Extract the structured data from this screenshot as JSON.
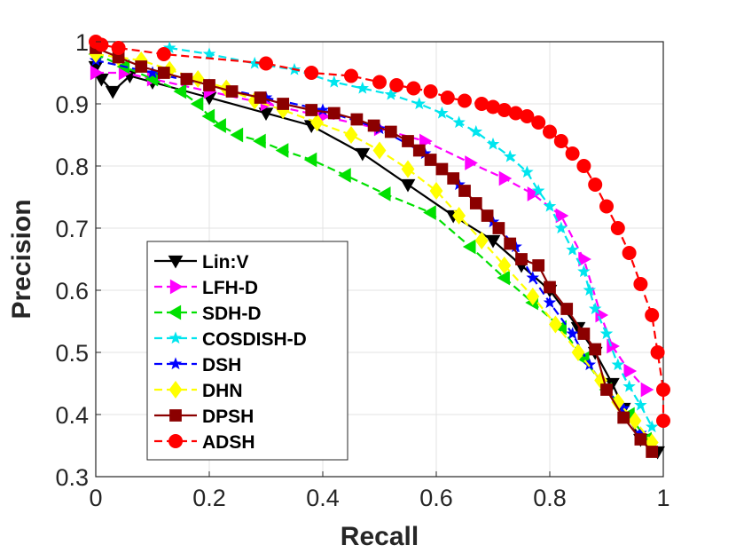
{
  "chart_data": {
    "type": "line",
    "title": "",
    "xlabel": "Recall",
    "ylabel": "Precision",
    "xlim": [
      0,
      1
    ],
    "ylim": [
      0.3,
      1
    ],
    "xticks": [
      "0",
      "0.2",
      "0.4",
      "0.6",
      "0.8",
      "1"
    ],
    "yticks": [
      "0.3",
      "0.4",
      "0.5",
      "0.6",
      "0.7",
      "0.8",
      "0.9",
      "1"
    ],
    "grid": true,
    "legend_position": "bottom-left",
    "series": [
      {
        "name": "Lin:V",
        "color": "#000000",
        "marker": "triangle-down",
        "line": "solid",
        "x": [
          0.0,
          0.01,
          0.03,
          0.06,
          0.1,
          0.2,
          0.3,
          0.38,
          0.47,
          0.55,
          0.63,
          0.7,
          0.75,
          0.8,
          0.85,
          0.88,
          0.91,
          0.93,
          0.96,
          0.99
        ],
        "y": [
          0.96,
          0.94,
          0.92,
          0.945,
          0.935,
          0.91,
          0.885,
          0.865,
          0.82,
          0.77,
          0.72,
          0.68,
          0.64,
          0.6,
          0.54,
          0.5,
          0.45,
          0.41,
          0.36,
          0.34
        ]
      },
      {
        "name": "LFH-D",
        "color": "#ff00ff",
        "marker": "triangle-right",
        "line": "dashed",
        "x": [
          0.0,
          0.05,
          0.1,
          0.2,
          0.3,
          0.4,
          0.5,
          0.58,
          0.66,
          0.72,
          0.77,
          0.82,
          0.86,
          0.89,
          0.91,
          0.94,
          0.97
        ],
        "y": [
          0.95,
          0.95,
          0.94,
          0.92,
          0.9,
          0.88,
          0.86,
          0.84,
          0.805,
          0.78,
          0.755,
          0.72,
          0.65,
          0.56,
          0.51,
          0.47,
          0.44
        ]
      },
      {
        "name": "SDH-D",
        "color": "#00e000",
        "marker": "triangle-left",
        "line": "dashed",
        "x": [
          0.0,
          0.05,
          0.1,
          0.15,
          0.18,
          0.2,
          0.22,
          0.25,
          0.29,
          0.33,
          0.38,
          0.44,
          0.51,
          0.59,
          0.66,
          0.72,
          0.77,
          0.82,
          0.86,
          0.9,
          0.94,
          0.97
        ],
        "y": [
          0.98,
          0.96,
          0.94,
          0.92,
          0.9,
          0.88,
          0.865,
          0.85,
          0.84,
          0.825,
          0.81,
          0.785,
          0.755,
          0.725,
          0.67,
          0.62,
          0.58,
          0.54,
          0.49,
          0.44,
          0.4,
          0.36
        ]
      },
      {
        "name": "COSDISH-D",
        "color": "#00e5ee",
        "marker": "star",
        "line": "dashed",
        "x": [
          0.13,
          0.2,
          0.28,
          0.35,
          0.42,
          0.47,
          0.52,
          0.57,
          0.61,
          0.64,
          0.67,
          0.7,
          0.73,
          0.76,
          0.78,
          0.8,
          0.82,
          0.84,
          0.86,
          0.87,
          0.88,
          0.9,
          0.92,
          0.94,
          0.96,
          0.98
        ],
        "y": [
          0.99,
          0.98,
          0.965,
          0.955,
          0.935,
          0.925,
          0.915,
          0.9,
          0.885,
          0.87,
          0.855,
          0.835,
          0.815,
          0.79,
          0.76,
          0.735,
          0.7,
          0.665,
          0.63,
          0.6,
          0.57,
          0.53,
          0.48,
          0.445,
          0.415,
          0.38
        ]
      },
      {
        "name": "DSH",
        "color": "#0000ff",
        "marker": "star",
        "line": "dashed",
        "x": [
          0.0,
          0.1,
          0.2,
          0.3,
          0.4,
          0.5,
          0.58,
          0.64,
          0.7,
          0.74,
          0.77,
          0.8,
          0.84,
          0.87,
          0.9,
          0.93,
          0.96
        ],
        "y": [
          0.97,
          0.95,
          0.93,
          0.91,
          0.89,
          0.86,
          0.82,
          0.77,
          0.71,
          0.67,
          0.62,
          0.58,
          0.53,
          0.48,
          0.44,
          0.41,
          0.37
        ]
      },
      {
        "name": "DHN",
        "color": "#ffff00",
        "marker": "diamond",
        "line": "dashed",
        "x": [
          0.0,
          0.04,
          0.08,
          0.13,
          0.18,
          0.23,
          0.28,
          0.33,
          0.39,
          0.45,
          0.5,
          0.55,
          0.6,
          0.64,
          0.68,
          0.72,
          0.77,
          0.81,
          0.85,
          0.89,
          0.92,
          0.95,
          0.98
        ],
        "y": [
          0.98,
          0.975,
          0.97,
          0.955,
          0.94,
          0.925,
          0.905,
          0.89,
          0.87,
          0.85,
          0.825,
          0.795,
          0.76,
          0.72,
          0.68,
          0.64,
          0.59,
          0.545,
          0.5,
          0.455,
          0.42,
          0.39,
          0.355
        ]
      },
      {
        "name": "DPSH",
        "color": "#8b0000",
        "marker": "square",
        "line": "solid",
        "x": [
          0.0,
          0.04,
          0.08,
          0.12,
          0.16,
          0.2,
          0.24,
          0.29,
          0.33,
          0.38,
          0.42,
          0.46,
          0.49,
          0.52,
          0.55,
          0.57,
          0.59,
          0.61,
          0.63,
          0.65,
          0.67,
          0.69,
          0.71,
          0.73,
          0.75,
          0.78,
          0.8,
          0.83,
          0.86,
          0.88,
          0.9,
          0.93,
          0.96,
          0.98
        ],
        "y": [
          0.99,
          0.975,
          0.96,
          0.95,
          0.94,
          0.93,
          0.92,
          0.91,
          0.9,
          0.89,
          0.885,
          0.875,
          0.865,
          0.855,
          0.84,
          0.825,
          0.81,
          0.795,
          0.78,
          0.76,
          0.74,
          0.72,
          0.7,
          0.675,
          0.65,
          0.64,
          0.605,
          0.57,
          0.53,
          0.505,
          0.44,
          0.395,
          0.36,
          0.34
        ]
      },
      {
        "name": "ADSH",
        "color": "#ff0000",
        "marker": "circle",
        "line": "dashed",
        "x": [
          0.0,
          0.01,
          0.04,
          0.12,
          0.3,
          0.38,
          0.45,
          0.5,
          0.53,
          0.56,
          0.59,
          0.62,
          0.65,
          0.68,
          0.7,
          0.72,
          0.74,
          0.76,
          0.78,
          0.8,
          0.82,
          0.84,
          0.86,
          0.88,
          0.9,
          0.92,
          0.94,
          0.96,
          0.98,
          0.99,
          1.0,
          1.0
        ],
        "y": [
          1.0,
          0.995,
          0.99,
          0.98,
          0.965,
          0.95,
          0.945,
          0.935,
          0.93,
          0.925,
          0.92,
          0.91,
          0.905,
          0.9,
          0.895,
          0.89,
          0.885,
          0.88,
          0.87,
          0.855,
          0.84,
          0.82,
          0.8,
          0.77,
          0.735,
          0.7,
          0.66,
          0.61,
          0.56,
          0.5,
          0.44,
          0.39
        ]
      }
    ]
  }
}
